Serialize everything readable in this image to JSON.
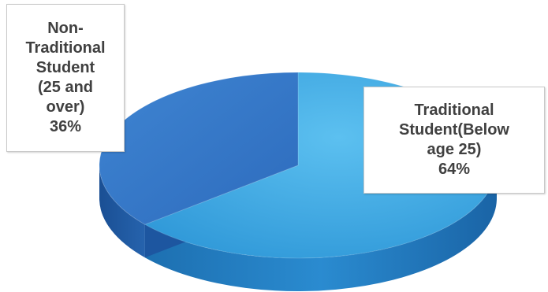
{
  "chart_data": {
    "type": "pie",
    "style": "3d",
    "slices": [
      {
        "label_lines": [
          "Traditional",
          "Student(Below",
          "age 25)"
        ],
        "percent_label": "64%",
        "value": 64,
        "color": "#3aa6e0",
        "side_color": "#1f7cc0"
      },
      {
        "label_lines": [
          "Non-",
          "Traditional",
          "Student",
          "(25 and",
          "over)"
        ],
        "percent_label": "36%",
        "value": 36,
        "color": "#3677c8",
        "side_color": "#1d56a0"
      }
    ]
  }
}
